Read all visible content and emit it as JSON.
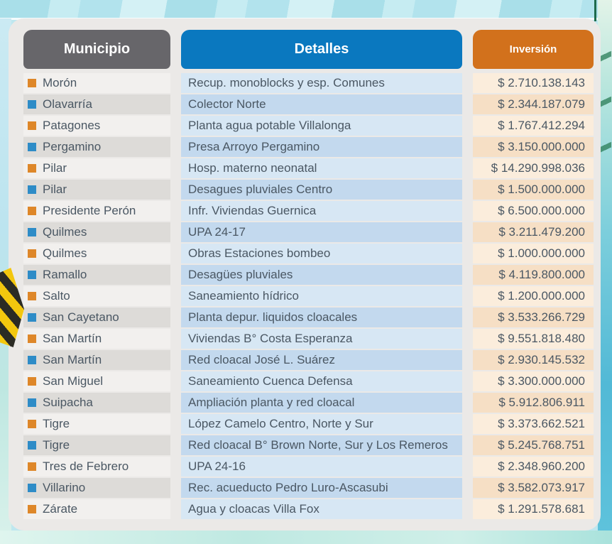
{
  "chart_data": {
    "type": "table",
    "columns": [
      "Municipio",
      "Detalles",
      "Inversión"
    ],
    "rows": [
      {
        "municipio": "Morón",
        "bullet": "orange",
        "detalle": "Recup. monoblocks y esp. Comunes",
        "inversion": "$ 2.710.138.143"
      },
      {
        "municipio": "Olavarría",
        "bullet": "blue",
        "detalle": "Colector Norte",
        "inversion": "$ 2.344.187.079"
      },
      {
        "municipio": "Patagones",
        "bullet": "orange",
        "detalle": "Planta agua potable Villalonga",
        "inversion": "$ 1.767.412.294"
      },
      {
        "municipio": "Pergamino",
        "bullet": "blue",
        "detalle": "Presa Arroyo Pergamino",
        "inversion": "$ 3.150.000.000"
      },
      {
        "municipio": "Pilar",
        "bullet": "orange",
        "detalle": "Hosp. materno neonatal",
        "inversion": "$ 14.290.998.036"
      },
      {
        "municipio": "Pilar",
        "bullet": "blue",
        "detalle": "Desagues pluviales Centro",
        "inversion": "$ 1.500.000.000"
      },
      {
        "municipio": "Presidente Perón",
        "bullet": "orange",
        "detalle": "Infr. Viviendas Guernica",
        "inversion": "$ 6.500.000.000"
      },
      {
        "municipio": "Quilmes",
        "bullet": "blue",
        "detalle": "UPA 24-17",
        "inversion": "$ 3.211.479.200"
      },
      {
        "municipio": "Quilmes",
        "bullet": "orange",
        "detalle": "Obras Estaciones bombeo",
        "inversion": "$ 1.000.000.000"
      },
      {
        "municipio": "Ramallo",
        "bullet": "blue",
        "detalle": "Desagües pluviales",
        "inversion": "$ 4.119.800.000"
      },
      {
        "municipio": "Salto",
        "bullet": "orange",
        "detalle": "Saneamiento hídrico",
        "inversion": "$ 1.200.000.000"
      },
      {
        "municipio": "San Cayetano",
        "bullet": "blue",
        "detalle": "Planta depur. liquidos cloacales",
        "inversion": "$ 3.533.266.729"
      },
      {
        "municipio": "San Martín",
        "bullet": "orange",
        "detalle": "Viviendas B° Costa Esperanza",
        "inversion": "$ 9.551.818.480"
      },
      {
        "municipio": "San Martín",
        "bullet": "blue",
        "detalle": "Red cloacal José L. Suárez",
        "inversion": "$ 2.930.145.532"
      },
      {
        "municipio": "San Miguel",
        "bullet": "orange",
        "detalle": "Saneamiento Cuenca Defensa",
        "inversion": "$ 3.300.000.000"
      },
      {
        "municipio": "Suipacha",
        "bullet": "blue",
        "detalle": "Ampliación planta y red cloacal",
        "inversion": "$ 5.912.806.911"
      },
      {
        "municipio": "Tigre",
        "bullet": "orange",
        "detalle": "López Camelo Centro, Norte y Sur",
        "inversion": "$ 3.373.662.521"
      },
      {
        "municipio": "Tigre",
        "bullet": "blue",
        "detalle": "Red cloacal B° Brown Norte, Sur y Los Remeros",
        "inversion": "$ 5.245.768.751"
      },
      {
        "municipio": "Tres de Febrero",
        "bullet": "orange",
        "detalle": "UPA 24-16",
        "inversion": "$ 2.348.960.200"
      },
      {
        "municipio": "Villarino",
        "bullet": "blue",
        "detalle": "Rec. acueducto Pedro Luro-Ascasubi",
        "inversion": "$ 3.582.073.917"
      },
      {
        "municipio": "Zárate",
        "bullet": "orange",
        "detalle": "Agua y cloacas Villa Fox",
        "inversion": "$ 1.291.578.681"
      }
    ]
  },
  "colors": {
    "bullet": {
      "orange": "#DE8729",
      "blue": "#2E8CC7"
    },
    "header_municipio_bg": "#67666A",
    "header_detalles_bg": "#0A78BF",
    "header_inversion_bg": "#D2711C"
  }
}
